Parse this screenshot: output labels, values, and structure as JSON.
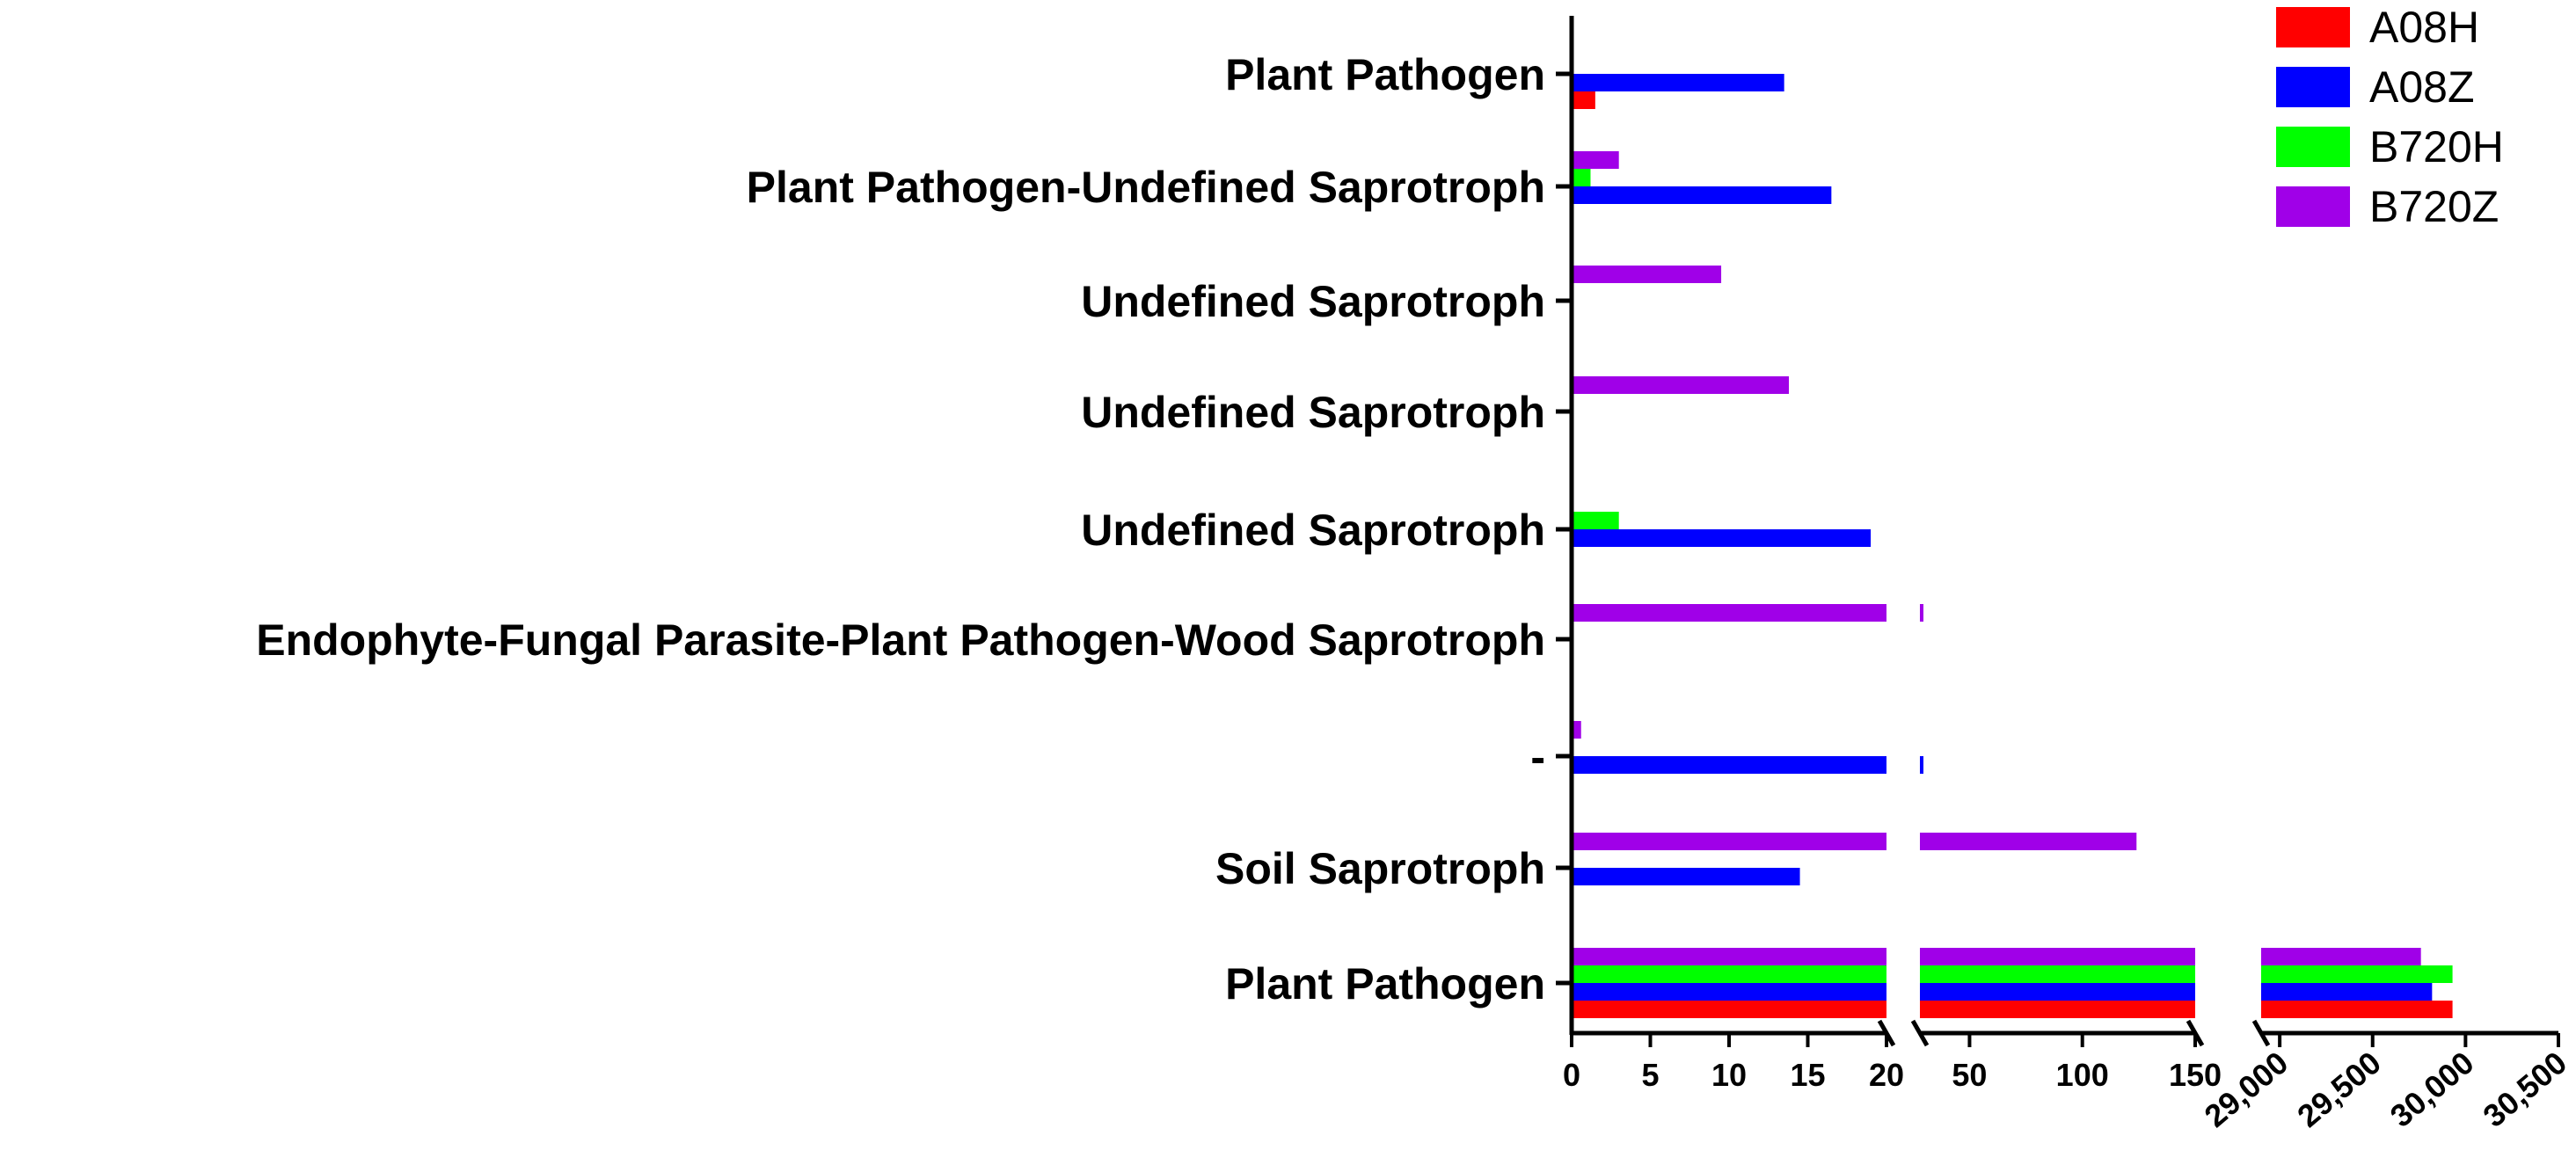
{
  "chart_data": {
    "type": "bar",
    "orientation": "horizontal",
    "broken_axis": true,
    "categories": [
      "Plant Pathogen",
      "Soil Saprotroph",
      "-",
      "Endophyte-Fungal Parasite-Plant Pathogen-Wood Saprotroph",
      "Undefined Saprotroph",
      "Undefined Saprotroph",
      "Undefined Saprotroph",
      "Plant Pathogen-Undefined Saprotroph",
      "Plant Pathogen"
    ],
    "series": [
      {
        "name": "A08H",
        "color": "#ff0000",
        "values": [
          29930,
          0,
          0,
          0,
          0,
          0,
          0,
          0,
          1.5
        ]
      },
      {
        "name": "A08Z",
        "color": "#0000ff",
        "values": [
          29820,
          14.5,
          25,
          0,
          19,
          0,
          0,
          16.5,
          13.5
        ]
      },
      {
        "name": "B720H",
        "color": "#00ff00",
        "values": [
          29930,
          0,
          0,
          0,
          3,
          0,
          0,
          1.2,
          0
        ]
      },
      {
        "name": "B720Z",
        "color": "#a000e8",
        "values": [
          29760,
          124,
          0.6,
          28,
          0,
          13.8,
          9.5,
          3,
          0
        ]
      }
    ],
    "axis_segments": [
      {
        "min": 0,
        "max": 20,
        "ticks": [
          "0",
          "5",
          "10",
          "15",
          "20"
        ]
      },
      {
        "min": 28,
        "max": 150,
        "ticks": [
          "50",
          "100",
          "150"
        ]
      },
      {
        "min": 28900,
        "max": 30500,
        "ticks": [
          "29,000",
          "29,500",
          "30,000",
          "30,500"
        ]
      }
    ],
    "legend_position": "top-right",
    "grid": false
  }
}
